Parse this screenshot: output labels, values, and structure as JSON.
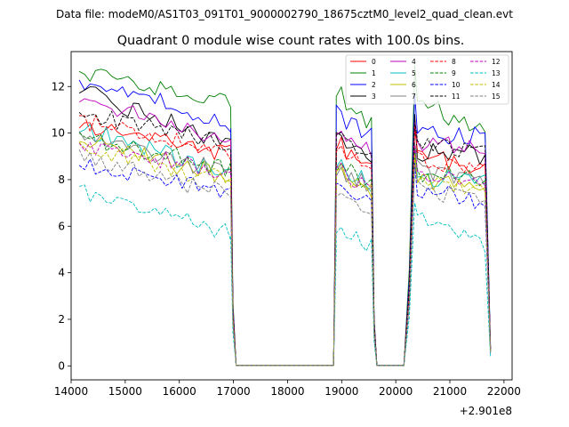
{
  "header": {
    "file_label": "Data file: modeM0/AS1T03_091T01_9000002790_18675cztM0_level2_quad_clean.evt"
  },
  "chart_data": {
    "type": "line",
    "title": "Quadrant 0 module wise count rates with 100.0s bins.",
    "xlabel": "",
    "ylabel": "",
    "x_offset_label": "+2.901e8",
    "x_offset": 290100000,
    "xlim": [
      14000,
      22150
    ],
    "ylim": [
      -0.6,
      13.5
    ],
    "x_ticks": [
      14000,
      15000,
      16000,
      17000,
      18000,
      19000,
      20000,
      21000,
      22000
    ],
    "y_ticks": [
      0,
      2,
      4,
      6,
      8,
      10,
      12
    ],
    "legend_position": "upper-right",
    "segments": [
      {
        "start": 14150,
        "end": 16950,
        "steps": 28
      },
      {
        "start": 17000,
        "end": 17050,
        "steps": 1
      },
      {
        "start": 17050,
        "end": 18850,
        "steps": 18
      },
      {
        "start": 18850,
        "end": 18900,
        "steps": 1
      },
      {
        "start": 18900,
        "end": 19550,
        "steps": 7
      },
      {
        "start": 19650,
        "end": 20150,
        "steps": 5
      },
      {
        "start": 20250,
        "end": 20350,
        "steps": 1
      },
      {
        "start": 20400,
        "end": 21650,
        "steps": 13
      },
      {
        "start": 21750,
        "end": 21750,
        "steps": 0
      }
    ],
    "series": [
      {
        "name": "0",
        "color": "#ff0000",
        "dash": "solid",
        "levels": [
          10.4,
          9.2,
          9.5,
          8.6,
          9.2,
          9.0,
          10.3,
          8.6
        ]
      },
      {
        "name": "1",
        "color": "#008000",
        "dash": "solid",
        "levels": [
          12.7,
          11.2,
          11.8,
          10.4,
          11.9,
          11.2,
          11.3,
          10.3
        ]
      },
      {
        "name": "2",
        "color": "#0000ff",
        "dash": "solid",
        "levels": [
          12.3,
          10.4,
          10.8,
          9.8,
          10.7,
          10.0,
          11.0,
          9.8
        ]
      },
      {
        "name": "3",
        "color": "#000000",
        "dash": "solid",
        "levels": [
          11.8,
          9.6,
          9.8,
          9.0,
          9.8,
          9.2,
          10.3,
          9.0
        ]
      },
      {
        "name": "4",
        "color": "#bf00bf",
        "dash": "solid",
        "levels": [
          11.5,
          9.8,
          9.9,
          9.3,
          9.6,
          9.5,
          10.2,
          9.2
        ]
      },
      {
        "name": "5",
        "color": "#00bfbf",
        "dash": "solid",
        "levels": [
          10.2,
          8.2,
          8.6,
          7.8,
          8.3,
          8.2,
          8.8,
          7.8
        ]
      },
      {
        "name": "6",
        "color": "#bfbf00",
        "dash": "solid",
        "levels": [
          9.7,
          8.1,
          8.4,
          7.5,
          8.0,
          8.1,
          8.4,
          7.6
        ]
      },
      {
        "name": "7",
        "color": "#808080",
        "dash": "solid",
        "levels": [
          10.0,
          8.3,
          8.2,
          7.8,
          8.6,
          8.4,
          9.0,
          8.0
        ]
      },
      {
        "name": "8",
        "color": "#ff0000",
        "dash": "dashed",
        "levels": [
          10.6,
          9.0,
          9.3,
          8.4,
          9.3,
          8.9,
          10.0,
          8.4
        ]
      },
      {
        "name": "9",
        "color": "#008000",
        "dash": "dashed",
        "levels": [
          9.9,
          8.4,
          8.6,
          7.9,
          8.3,
          8.4,
          9.1,
          8.0
        ]
      },
      {
        "name": "10",
        "color": "#0000ff",
        "dash": "dashed",
        "levels": [
          8.6,
          7.5,
          7.6,
          7.0,
          7.7,
          7.6,
          8.0,
          7.0
        ]
      },
      {
        "name": "11",
        "color": "#000000",
        "dash": "dashed",
        "levels": [
          10.9,
          9.5,
          9.8,
          9.1,
          9.6,
          9.5,
          10.3,
          9.1
        ]
      },
      {
        "name": "12",
        "color": "#bf00bf",
        "dash": "dashed",
        "levels": [
          9.5,
          8.2,
          8.4,
          7.6,
          8.5,
          8.3,
          8.7,
          7.8
        ]
      },
      {
        "name": "13",
        "color": "#00bfbf",
        "dash": "dashed",
        "levels": [
          7.5,
          5.7,
          5.6,
          5.2,
          6.0,
          6.5,
          6.2,
          5.2
        ]
      },
      {
        "name": "14",
        "color": "#bfbf00",
        "dash": "dashed",
        "levels": [
          9.3,
          8.0,
          8.3,
          7.4,
          8.1,
          8.0,
          8.5,
          7.4
        ]
      },
      {
        "name": "15",
        "color": "#808080",
        "dash": "dashed",
        "levels": [
          9.0,
          7.4,
          7.3,
          6.7,
          7.6,
          7.6,
          8.2,
          7.2
        ]
      }
    ]
  }
}
